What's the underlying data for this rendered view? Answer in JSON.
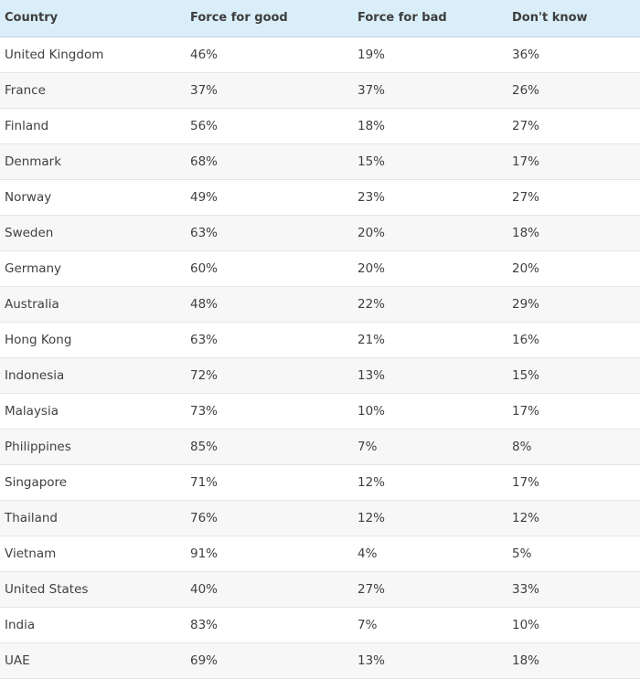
{
  "table": {
    "headers": [
      "Country",
      "Force for good",
      "Force for bad",
      "Don't know"
    ],
    "rows": [
      [
        "United Kingdom",
        "46%",
        "19%",
        "36%"
      ],
      [
        "France",
        "37%",
        "37%",
        "26%"
      ],
      [
        "Finland",
        "56%",
        "18%",
        "27%"
      ],
      [
        "Denmark",
        "68%",
        "15%",
        "17%"
      ],
      [
        "Norway",
        "49%",
        "23%",
        "27%"
      ],
      [
        "Sweden",
        "63%",
        "20%",
        "18%"
      ],
      [
        "Germany",
        "60%",
        "20%",
        "20%"
      ],
      [
        "Australia",
        "48%",
        "22%",
        "29%"
      ],
      [
        "Hong Kong",
        "63%",
        "21%",
        "16%"
      ],
      [
        "Indonesia",
        "72%",
        "13%",
        "15%"
      ],
      [
        "Malaysia",
        "73%",
        "10%",
        "17%"
      ],
      [
        "Philippines",
        "85%",
        "7%",
        "8%"
      ],
      [
        "Singapore",
        "71%",
        "12%",
        "17%"
      ],
      [
        "Thailand",
        "76%",
        "12%",
        "12%"
      ],
      [
        "Vietnam",
        "91%",
        "4%",
        "5%"
      ],
      [
        "United States",
        "40%",
        "27%",
        "33%"
      ],
      [
        "India",
        "83%",
        "7%",
        "10%"
      ],
      [
        "UAE",
        "69%",
        "13%",
        "18%"
      ]
    ]
  },
  "colors": {
    "header_background": "#d9eef8",
    "row_stripe": "#f7f7f7",
    "text": "#404040"
  }
}
